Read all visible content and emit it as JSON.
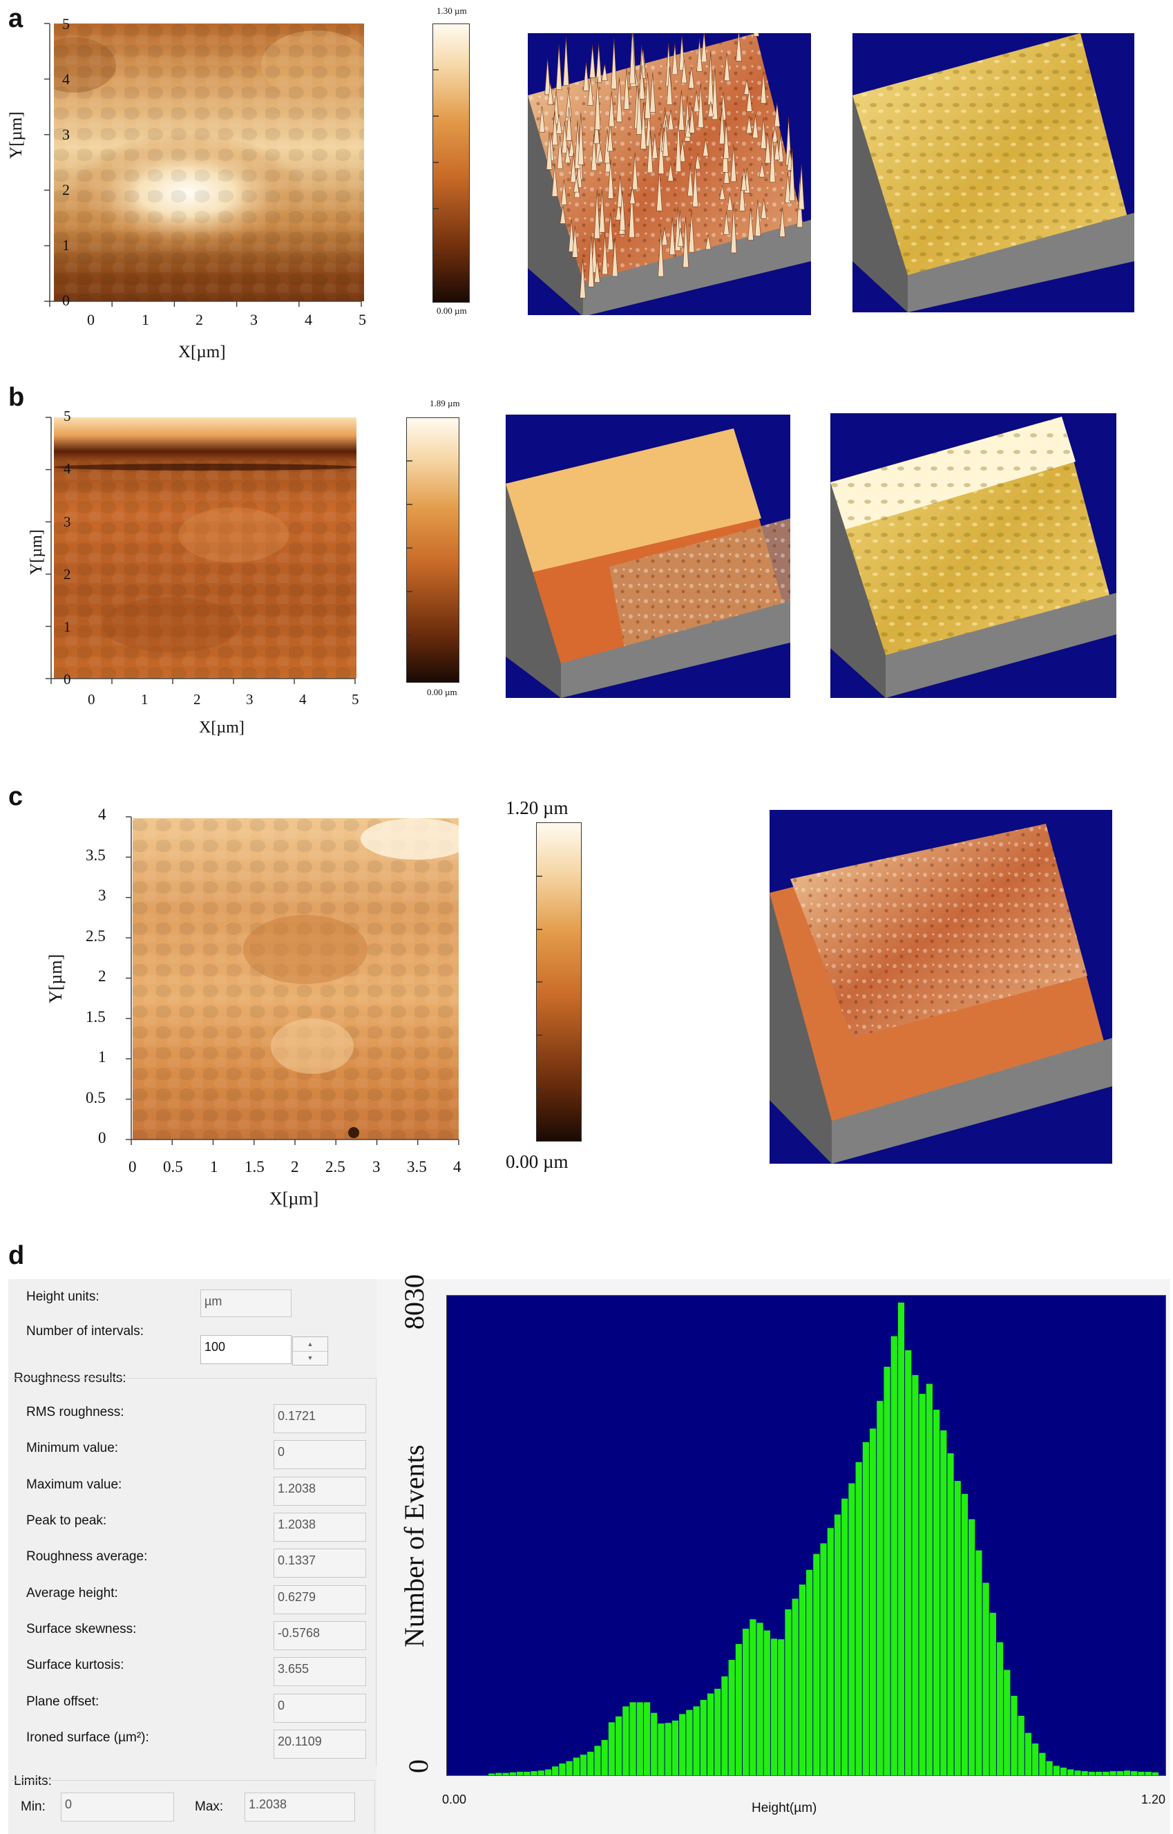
{
  "panels": {
    "a": "a",
    "b": "b",
    "c": "c",
    "d": "d"
  },
  "colors": {
    "afm_dark": "#1a0a04",
    "afm_mid": "#c86a28",
    "afm_light": "#fffaf0",
    "surf_bg": "#0a0a82",
    "hist_bg": "#000080",
    "hist_bar": "#22ee11",
    "dialog_bg": "#f0f0f0"
  },
  "icons": [
    "spin-up-icon",
    "spin-down-icon"
  ],
  "scalebars": {
    "a": {
      "top": "1.30 µm",
      "bottom": "0.00 µm"
    },
    "b": {
      "top": "1.89 µm",
      "bottom": "0.00 µm"
    },
    "c": {
      "top": "1.20 µm",
      "bottom": "0.00 µm"
    }
  },
  "chart_data": [
    {
      "panel": "a",
      "type": "heatmap",
      "xlabel": "X[µm]",
      "ylabel": "Y[µm]",
      "x_ticks": [
        "0",
        "1",
        "2",
        "3",
        "4",
        "5"
      ],
      "y_ticks": [
        "0",
        "1",
        "2",
        "3",
        "4",
        "5"
      ],
      "xlim": [
        0,
        5
      ],
      "ylim": [
        0,
        5
      ],
      "zlim": [
        0,
        1.3
      ]
    },
    {
      "panel": "b",
      "type": "heatmap",
      "xlabel": "X[µm]",
      "ylabel": "Y[µm]",
      "x_ticks": [
        "0",
        "1",
        "2",
        "3",
        "4",
        "5"
      ],
      "y_ticks": [
        "0",
        "1",
        "2",
        "3",
        "4",
        "5"
      ],
      "xlim": [
        0,
        5
      ],
      "ylim": [
        0,
        5
      ],
      "zlim": [
        0,
        1.89
      ]
    },
    {
      "panel": "c",
      "type": "heatmap",
      "xlabel": "X[µm]",
      "ylabel": "Y[µm]",
      "x_ticks": [
        "0",
        "0.5",
        "1",
        "1.5",
        "2",
        "2.5",
        "3",
        "3.5",
        "4"
      ],
      "y_ticks": [
        "0",
        "0.5",
        "1",
        "1.5",
        "2",
        "2.5",
        "3",
        "3.5",
        "4"
      ],
      "xlim": [
        0,
        4
      ],
      "ylim": [
        0,
        4
      ],
      "zlim": [
        0,
        1.2
      ]
    },
    {
      "panel": "d",
      "type": "bar",
      "xlabel": "Height(µm)",
      "ylabel": "Number of Events",
      "x_ticks": [
        "0.00",
        "1.20"
      ],
      "y_ticks": [
        "0",
        "8030"
      ],
      "xlim": [
        0,
        1.2
      ],
      "ylim": [
        0,
        8030
      ],
      "grid": false,
      "bin_count": 100,
      "values": [
        0,
        0,
        0,
        0,
        0,
        30,
        40,
        40,
        50,
        60,
        60,
        70,
        80,
        100,
        150,
        200,
        240,
        300,
        350,
        400,
        500,
        600,
        900,
        1000,
        1170,
        1240,
        1240,
        1240,
        1060,
        880,
        890,
        930,
        1040,
        1110,
        1170,
        1280,
        1390,
        1470,
        1680,
        1960,
        2230,
        2490,
        2650,
        2590,
        2460,
        2320,
        2310,
        2820,
        3000,
        3240,
        3490,
        3760,
        3940,
        4200,
        4430,
        4700,
        4960,
        5320,
        5660,
        5890,
        6360,
        6940,
        7460,
        8030,
        7220,
        6800,
        6480,
        6650,
        6210,
        5860,
        5470,
        5000,
        4780,
        4350,
        3820,
        3270,
        2760,
        2260,
        1790,
        1350,
        1010,
        720,
        540,
        380,
        240,
        160,
        130,
        100,
        80,
        70,
        60,
        60,
        60,
        70,
        70,
        80,
        70,
        60,
        60,
        50
      ]
    }
  ],
  "roughness": {
    "height_units_label": "Height units:",
    "height_units_value": "µm",
    "intervals_label": "Number of intervals:",
    "intervals_value": "100",
    "results_title": "Roughness results:",
    "rows": [
      {
        "label": "RMS roughness:",
        "value": "0.1721"
      },
      {
        "label": "Minimum value:",
        "value": "0"
      },
      {
        "label": "Maximum value:",
        "value": "1.2038"
      },
      {
        "label": "Peak  to peak:",
        "value": "1.2038"
      },
      {
        "label": "Roughness average:",
        "value": "0.1337"
      },
      {
        "label": "Average height:",
        "value": "0.6279"
      },
      {
        "label": "Surface skewness:",
        "value": "-0.5768"
      },
      {
        "label": "Surface kurtosis:",
        "value": "3.655"
      },
      {
        "label": "Plane offset:",
        "value": "0"
      },
      {
        "label": "Ironed surface (µm²):",
        "value": "20.1109"
      }
    ],
    "limits_title": "Limits:",
    "min_label": "Min:",
    "min_value": "0",
    "max_label": "Max:",
    "max_value": "1.2038"
  }
}
